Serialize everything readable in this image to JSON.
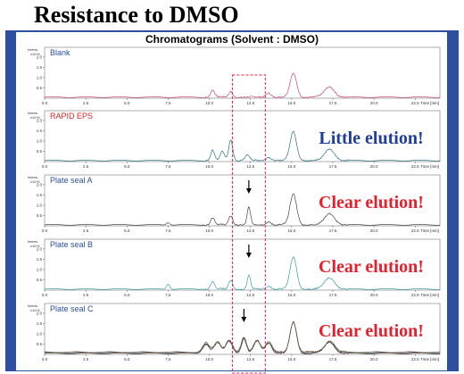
{
  "page_title": "Resistance to DMSO",
  "figure_title": "Chromatograms (Solvent : DMSO)",
  "colors": {
    "frame": "#2e4e9e",
    "highlight_box": "#e0203a",
    "annot_blue": "#1f3d9a",
    "annot_red": "#e3202c",
    "panel_label_blue": "#2a4f9e",
    "panel_label_red": "#d6262e"
  },
  "axis": {
    "x_ticks": [
      "0.0",
      "2.5",
      "5.0",
      "7.5",
      "10.0",
      "12.5",
      "15.0",
      "17.5",
      "20.0",
      "22.5"
    ],
    "x_unit": "Time [min]",
    "y_unit_line1": "Intens.",
    "y_unit_line2": "x10^6",
    "y_ticks": [
      "0.5",
      "1.0",
      "1.5",
      "2.0"
    ]
  },
  "chart_data": [
    {
      "type": "line",
      "label": "Blank",
      "label_color": "#2a4f9e",
      "line_color": "#c8467c",
      "xlim": [
        0,
        24
      ],
      "ylim": [
        0,
        2.3
      ],
      "annotation": "",
      "arrow_at": null,
      "peaks": [
        [
          10.2,
          0.35,
          0.12
        ],
        [
          11.3,
          0.28,
          0.12
        ],
        [
          13.6,
          0.22,
          0.15
        ],
        [
          15.1,
          1.15,
          0.2
        ],
        [
          17.3,
          0.5,
          0.3
        ]
      ]
    },
    {
      "type": "line",
      "label": "RAPID EPS",
      "label_color": "#d6262e",
      "line_color": "#2b6e86",
      "xlim": [
        0,
        24
      ],
      "ylim": [
        0,
        2.3
      ],
      "annotation": "Little elution!",
      "annotation_color": "#1f3d9a",
      "arrow_at": null,
      "peaks": [
        [
          10.2,
          0.5,
          0.12
        ],
        [
          10.8,
          0.45,
          0.12
        ],
        [
          11.3,
          1.0,
          0.12
        ],
        [
          12.3,
          0.25,
          0.15
        ],
        [
          13.6,
          0.18,
          0.15
        ],
        [
          15.1,
          1.4,
          0.2
        ],
        [
          17.3,
          0.55,
          0.3
        ]
      ]
    },
    {
      "type": "line",
      "label": "Plate seal A",
      "label_color": "#2a4f9e",
      "line_color": "#444444",
      "xlim": [
        0,
        24
      ],
      "ylim": [
        0,
        2.3
      ],
      "annotation": "Clear elution!",
      "annotation_color": "#e3202c",
      "arrow_at": 12.4,
      "peaks": [
        [
          7.5,
          0.12,
          0.1
        ],
        [
          10.2,
          0.35,
          0.12
        ],
        [
          11.3,
          0.45,
          0.12
        ],
        [
          12.4,
          0.85,
          0.1
        ],
        [
          13.6,
          0.15,
          0.15
        ],
        [
          15.1,
          1.5,
          0.2
        ],
        [
          17.3,
          0.55,
          0.3
        ]
      ]
    },
    {
      "type": "line",
      "label": "Plate seal B",
      "label_color": "#2a4f9e",
      "line_color": "#3e9aa8",
      "xlim": [
        0,
        24
      ],
      "ylim": [
        0,
        2.3
      ],
      "annotation": "Clear elution!",
      "annotation_color": "#e3202c",
      "arrow_at": 12.4,
      "peaks": [
        [
          7.5,
          0.25,
          0.1
        ],
        [
          10.2,
          0.35,
          0.12
        ],
        [
          11.3,
          0.45,
          0.12
        ],
        [
          12.4,
          0.65,
          0.1
        ],
        [
          13.6,
          0.15,
          0.15
        ],
        [
          15.1,
          1.55,
          0.2
        ],
        [
          17.3,
          0.55,
          0.3
        ]
      ]
    },
    {
      "type": "line",
      "label": "Plate seal C",
      "label_color": "#2a4f9e",
      "line_color": "#5a2a2a",
      "xlim": [
        0,
        24
      ],
      "ylim": [
        0,
        2.3
      ],
      "annotation": "Clear elution!",
      "annotation_color": "#e3202c",
      "arrow_at": 12.1,
      "multi_trace": true,
      "peaks": [
        [
          9.8,
          0.45,
          0.2
        ],
        [
          10.5,
          0.5,
          0.2
        ],
        [
          11.2,
          0.6,
          0.2
        ],
        [
          12.1,
          0.7,
          0.15
        ],
        [
          12.9,
          0.6,
          0.2
        ],
        [
          13.6,
          0.5,
          0.2
        ],
        [
          15.1,
          1.5,
          0.2
        ],
        [
          17.3,
          0.55,
          0.3
        ]
      ]
    }
  ]
}
